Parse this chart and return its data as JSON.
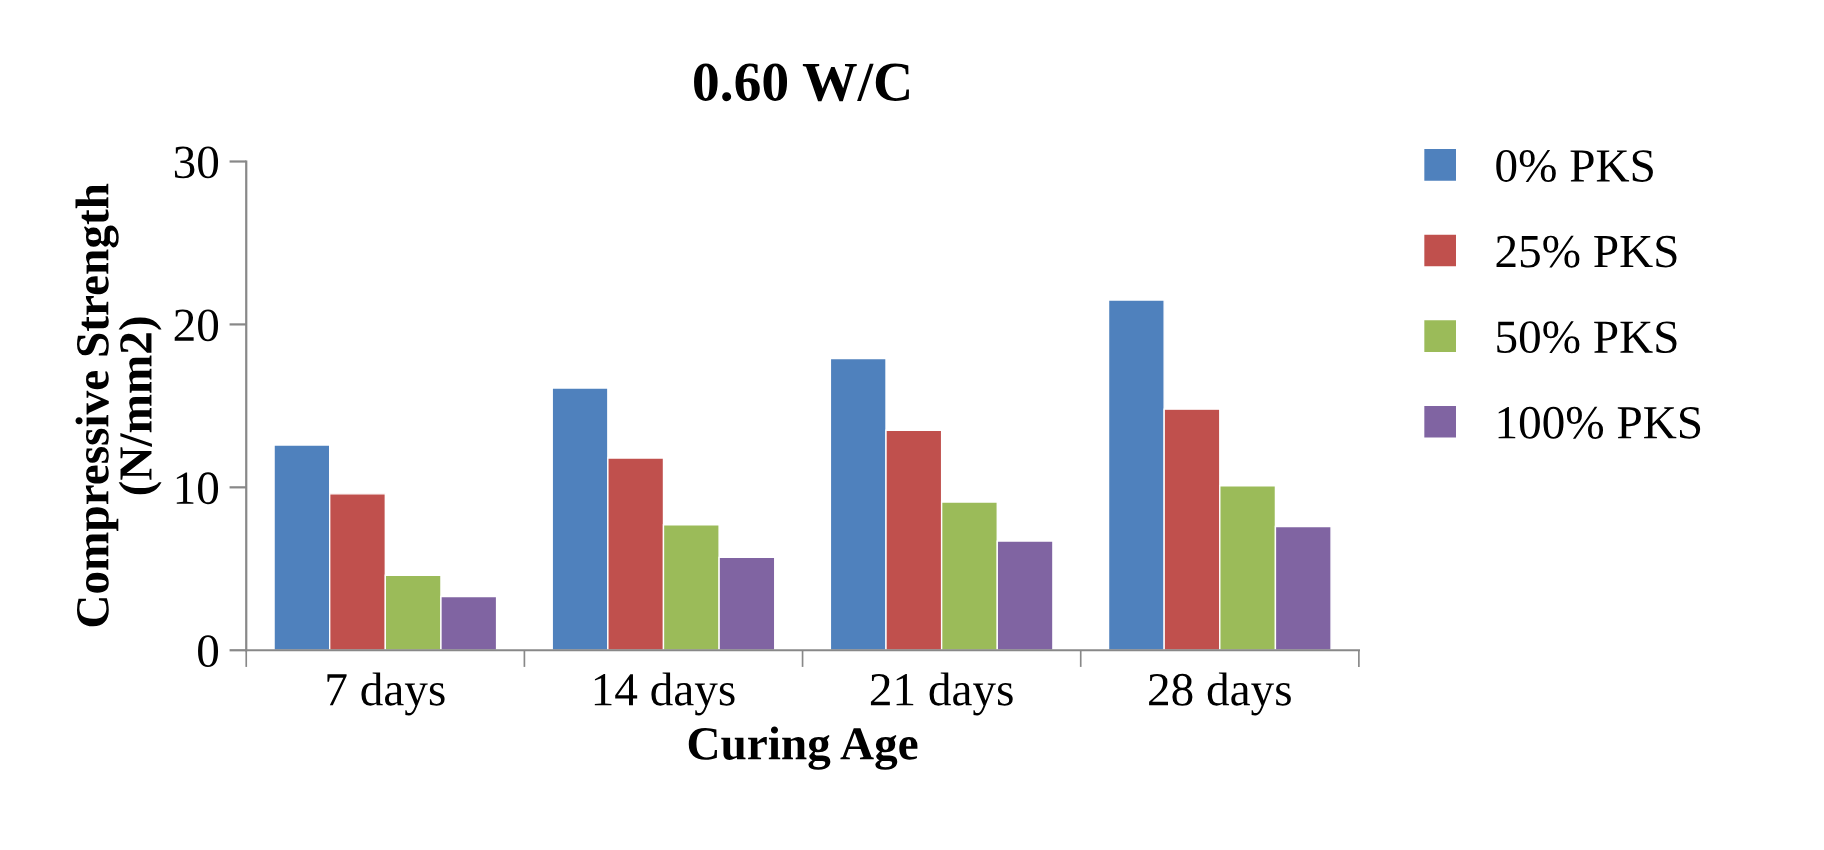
{
  "chart_data": {
    "type": "bar",
    "title": "0.60 W/C",
    "xlabel": "Curing Age",
    "ylabel": "Compressive Strength\n(N/mm2)",
    "categories": [
      "7 days",
      "14 days",
      "21 days",
      "28 days"
    ],
    "series": [
      {
        "name": "0% PKS",
        "color": "#4f81bd",
        "values": [
          12.6,
          16.1,
          17.9,
          21.5
        ]
      },
      {
        "name": "25% PKS",
        "color": "#c0504d",
        "values": [
          9.6,
          11.8,
          13.5,
          14.8
        ]
      },
      {
        "name": "50% PKS",
        "color": "#9bbb59",
        "values": [
          4.6,
          7.7,
          9.1,
          10.1
        ]
      },
      {
        "name": "100% PKS",
        "color": "#8064a2",
        "values": [
          3.3,
          5.7,
          6.7,
          7.6
        ]
      }
    ],
    "ylim": [
      0,
      30
    ],
    "yticks": [
      0,
      10,
      20,
      30
    ],
    "grid": false,
    "legend": "right"
  }
}
